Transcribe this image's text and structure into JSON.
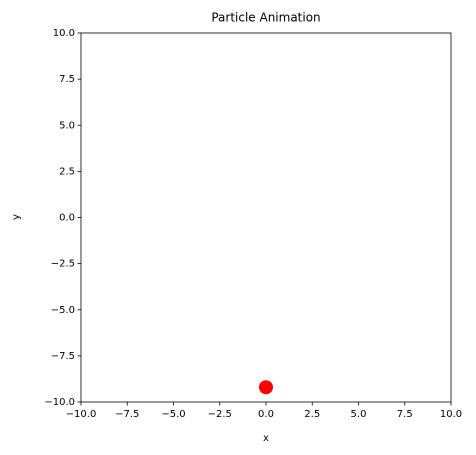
{
  "chart_data": {
    "type": "scatter",
    "title": "Particle Animation",
    "x_label": "x",
    "y_label": "y",
    "series": [
      {
        "color": "#ff0000",
        "x": [
          0.0
        ],
        "values": [
          -9.2
        ]
      }
    ],
    "xlim": [
      -10,
      10
    ],
    "ylim": [
      -10,
      10
    ],
    "xticks": [
      {
        "value": -10,
        "label": "−10.0"
      },
      {
        "value": -7.5,
        "label": "−7.5"
      },
      {
        "value": -5,
        "label": "−5.0"
      },
      {
        "value": -2.5,
        "label": "−2.5"
      },
      {
        "value": 0,
        "label": "0.0"
      },
      2.5,
      {
        "value": 5,
        "label": "5.0"
      },
      7.5,
      {
        "value": 10,
        "label": "10.0"
      }
    ],
    "yticks": [
      {
        "value": -10,
        "label": "−10.0"
      },
      {
        "value": -7.5,
        "label": "−7.5"
      },
      {
        "value": -5,
        "label": "−5.0"
      },
      {
        "value": -2.5,
        "label": "−2.5"
      },
      {
        "value": 0,
        "label": "0.0"
      },
      2.5,
      {
        "value": 5,
        "label": "5.0"
      },
      7.5,
      {
        "value": 10,
        "label": "10.0"
      }
    ],
    "grid": false
  }
}
